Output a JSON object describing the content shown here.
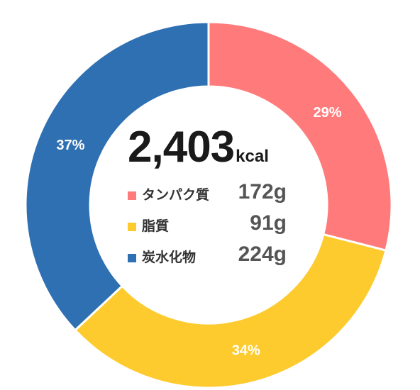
{
  "chart_data": {
    "type": "pie",
    "donut": true,
    "slices": [
      {
        "name": "タンパク質",
        "percent": 29,
        "label": "29%",
        "amount": "172g",
        "color": "#FF7B7B"
      },
      {
        "name": "脂質",
        "percent": 34,
        "label": "34%",
        "amount": "91g",
        "color": "#FDCB2E"
      },
      {
        "name": "炭水化物",
        "percent": 37,
        "label": "37%",
        "amount": "224g",
        "color": "#2E70B2"
      }
    ],
    "center": {
      "value": "2,403",
      "unit": "kcal"
    }
  }
}
